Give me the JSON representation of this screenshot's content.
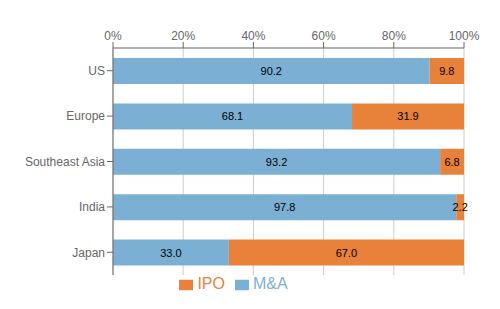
{
  "chart_data": {
    "type": "bar",
    "orientation": "horizontal",
    "stacked": true,
    "categories": [
      "US",
      "Europe",
      "Southeast Asia",
      "India",
      "Japan"
    ],
    "series": [
      {
        "name": "M&A",
        "color": "#7BAFD4",
        "values": [
          90.2,
          68.1,
          93.2,
          97.8,
          33.0
        ],
        "value_labels": [
          "90.2",
          "68.1",
          "93.2",
          "97.8",
          "33.0"
        ]
      },
      {
        "name": "IPO",
        "color": "#E8813A",
        "values": [
          9.8,
          31.9,
          6.8,
          2.2,
          67.0
        ],
        "value_labels": [
          "9.8",
          "31.9",
          "6.8",
          "2.2",
          "67.0"
        ]
      }
    ],
    "xlim": [
      0,
      100
    ],
    "xticks": [
      {
        "value": 0,
        "label": "0%"
      },
      {
        "value": 20,
        "label": "20%"
      },
      {
        "value": 40,
        "label": "40%"
      },
      {
        "value": 60,
        "label": "60%"
      },
      {
        "value": 80,
        "label": "80%"
      },
      {
        "value": 100,
        "label": "100%"
      }
    ],
    "grid": true,
    "data_labels": true,
    "legend": "bottom"
  }
}
